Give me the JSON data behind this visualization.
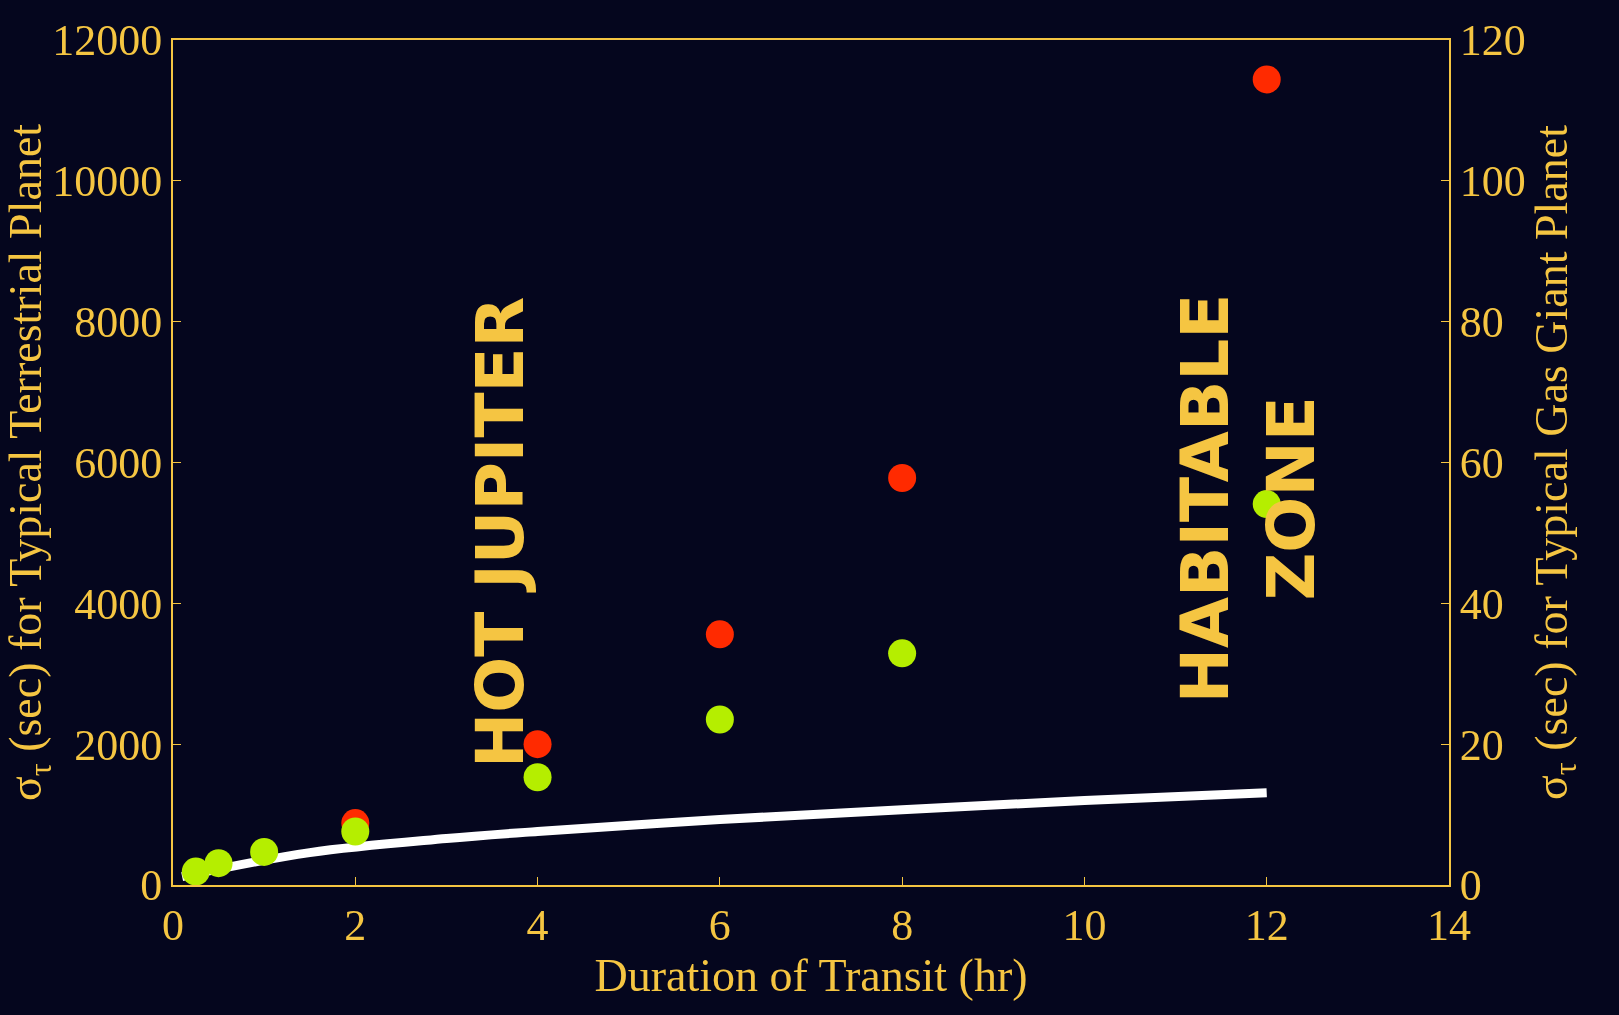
{
  "chart_data": {
    "type": "scatter",
    "xlabel": "Duration of Transit (hr)",
    "ylabel": "σ$_{τ}$ (sec) for Typical Terrestrial Planet",
    "y2label": "σ$_{τ}$ (sec) for Typical Gas Giant Planet",
    "xlim": [
      0,
      14
    ],
    "xticks": [
      0,
      2,
      4,
      6,
      8,
      10,
      12,
      14
    ],
    "ylim": [
      0,
      12000
    ],
    "yticks": [
      0,
      2000,
      4000,
      6000,
      8000,
      10000,
      12000
    ],
    "y2lim": [
      0,
      120
    ],
    "y2ticks": [
      0,
      20,
      40,
      60,
      80,
      100,
      120
    ],
    "grid": false,
    "marker": "circle",
    "series": [
      {
        "type": "line",
        "marker": "none",
        "color": "#ffffff",
        "x": [
          0.1,
          1.5,
          3,
          4,
          6,
          8,
          10,
          12
        ],
        "values": [
          120,
          460,
          660,
          760,
          930,
          1070,
          1200,
          1310
        ]
      },
      {
        "color": "#ff2a00",
        "x": [
          2,
          4,
          6,
          8,
          12
        ],
        "values": [
          880,
          2000,
          3560,
          5780,
          11440
        ]
      },
      {
        "color": "#b5ee00",
        "x": [
          0.25,
          0.5,
          1,
          2,
          4,
          6,
          8,
          12
        ],
        "values": [
          190,
          310,
          470,
          760,
          1530,
          2350,
          3290,
          5410
        ]
      }
    ],
    "annotations": [
      "HOT JUPITER",
      "HABITABLE\nZONE"
    ]
  }
}
